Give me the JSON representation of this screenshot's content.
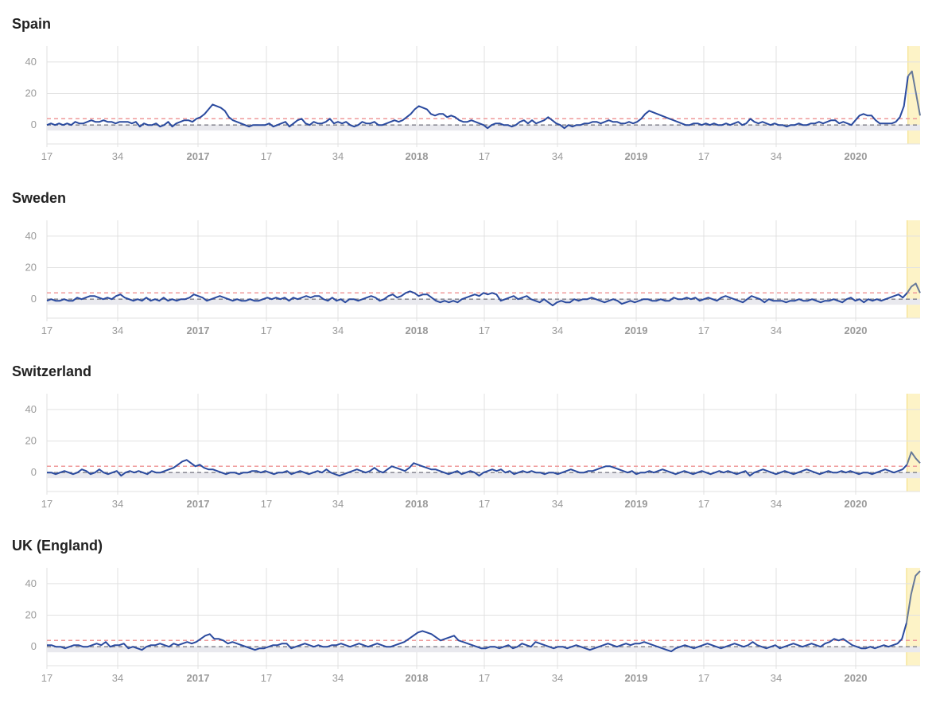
{
  "chart_data": [
    {
      "type": "line",
      "title": "Spain",
      "x_tick_labels": [
        "17",
        "34",
        "2017",
        "17",
        "34",
        "2018",
        "17",
        "34",
        "2019",
        "17",
        "34",
        "2020"
      ],
      "y_ticks": [
        0,
        20,
        40
      ],
      "ylim": [
        -12,
        50
      ],
      "threshold": 4,
      "baseline": 0,
      "highlight_last_weeks": 3,
      "x_unit": "ISO week (2016 week 17 to 2020 week 14)",
      "y": [
        0,
        1,
        0,
        1,
        0,
        1,
        0,
        2,
        1,
        1,
        2,
        3,
        2,
        2,
        3,
        2,
        2,
        1,
        2,
        2,
        2,
        1,
        2,
        -1,
        1,
        0,
        0,
        1,
        -1,
        0,
        2,
        -1,
        1,
        2,
        3,
        3,
        2,
        4,
        5,
        7,
        10,
        13,
        12,
        11,
        9,
        5,
        3,
        2,
        1,
        0,
        -1,
        0,
        0,
        0,
        0,
        1,
        -1,
        0,
        1,
        2,
        -1,
        1,
        3,
        4,
        1,
        0,
        2,
        1,
        1,
        2,
        4,
        1,
        2,
        1,
        2,
        0,
        -1,
        0,
        2,
        1,
        1,
        2,
        0,
        0,
        1,
        2,
        3,
        2,
        3,
        5,
        7,
        10,
        12,
        11,
        10,
        7,
        6,
        7,
        7,
        5,
        6,
        5,
        3,
        2,
        2,
        3,
        2,
        1,
        0,
        -2,
        0,
        1,
        1,
        0,
        0,
        -1,
        0,
        2,
        3,
        1,
        3,
        1,
        2,
        3,
        5,
        3,
        1,
        0,
        -2,
        0,
        -1,
        0,
        0,
        1,
        1,
        2,
        2,
        1,
        2,
        3,
        2,
        2,
        1,
        1,
        2,
        1,
        2,
        4,
        7,
        9,
        8,
        7,
        6,
        5,
        4,
        3,
        2,
        1,
        0,
        0,
        1,
        1,
        0,
        1,
        0,
        1,
        0,
        0,
        1,
        0,
        1,
        2,
        0,
        1,
        4,
        2,
        1,
        2,
        1,
        0,
        1,
        0,
        0,
        -1,
        0,
        0,
        1,
        0,
        0,
        1,
        1,
        2,
        1,
        2,
        3,
        3,
        1,
        2,
        1,
        0,
        3,
        6,
        7,
        6,
        6,
        3,
        1,
        1,
        1,
        1,
        2,
        5,
        12,
        31,
        34,
        20,
        6
      ]
    },
    {
      "type": "line",
      "title": "Sweden",
      "x_tick_labels": [
        "17",
        "34",
        "2017",
        "17",
        "34",
        "2018",
        "17",
        "34",
        "2019",
        "17",
        "34",
        "2020"
      ],
      "y_ticks": [
        0,
        20,
        40
      ],
      "ylim": [
        -12,
        50
      ],
      "threshold": 4,
      "baseline": 0,
      "highlight_last_weeks": 3,
      "x_unit": "ISO week (2016 week 17 to 2020 week 14)",
      "y": [
        -1,
        0,
        -1,
        -1,
        0,
        -1,
        -1,
        1,
        0,
        1,
        2,
        2,
        1,
        0,
        1,
        0,
        2,
        3,
        1,
        0,
        -1,
        0,
        -1,
        1,
        -1,
        0,
        -1,
        1,
        -1,
        0,
        -1,
        0,
        0,
        1,
        3,
        2,
        1,
        -1,
        0,
        1,
        2,
        1,
        0,
        -1,
        0,
        -1,
        -1,
        0,
        -1,
        -1,
        0,
        1,
        0,
        1,
        0,
        1,
        -1,
        1,
        0,
        1,
        2,
        1,
        2,
        2,
        0,
        -1,
        1,
        -1,
        0,
        -2,
        0,
        0,
        -1,
        0,
        1,
        2,
        1,
        -1,
        0,
        2,
        3,
        1,
        2,
        4,
        5,
        4,
        2,
        3,
        3,
        1,
        -1,
        -2,
        -1,
        -2,
        -1,
        -2,
        0,
        1,
        2,
        3,
        2,
        4,
        3,
        4,
        3,
        -1,
        0,
        1,
        2,
        0,
        1,
        2,
        0,
        -1,
        -2,
        0,
        -2,
        -4,
        -2,
        -1,
        -2,
        -2,
        0,
        -1,
        0,
        0,
        1,
        0,
        -1,
        -2,
        -1,
        0,
        -1,
        -3,
        -2,
        -1,
        -2,
        -1,
        0,
        0,
        -1,
        -1,
        0,
        -1,
        -1,
        1,
        0,
        0,
        1,
        0,
        1,
        -1,
        0,
        1,
        0,
        -1,
        1,
        2,
        1,
        0,
        -1,
        -2,
        0,
        2,
        1,
        0,
        -2,
        0,
        -1,
        -1,
        -1,
        -2,
        -1,
        -1,
        0,
        -1,
        -1,
        0,
        -1,
        -2,
        -1,
        -1,
        0,
        -1,
        -2,
        0,
        1,
        -1,
        0,
        -2,
        0,
        -1,
        0,
        -1,
        0,
        1,
        2,
        3,
        1,
        4,
        8,
        10,
        4
      ]
    },
    {
      "type": "line",
      "title": "Switzerland",
      "x_tick_labels": [
        "17",
        "34",
        "2017",
        "17",
        "34",
        "2018",
        "17",
        "34",
        "2019",
        "17",
        "34",
        "2020"
      ],
      "y_ticks": [
        0,
        20,
        40
      ],
      "ylim": [
        -12,
        50
      ],
      "threshold": 4,
      "baseline": 0,
      "highlight_last_weeks": 3,
      "x_unit": "ISO week (2016 week 17 to 2020 week 14)",
      "y": [
        0,
        0,
        -1,
        0,
        1,
        0,
        -1,
        0,
        2,
        1,
        -1,
        0,
        2,
        0,
        -1,
        0,
        1,
        -2,
        0,
        1,
        0,
        1,
        0,
        -1,
        1,
        0,
        0,
        1,
        2,
        3,
        5,
        7,
        8,
        6,
        4,
        5,
        3,
        2,
        2,
        1,
        0,
        -1,
        0,
        0,
        -1,
        0,
        0,
        1,
        1,
        0,
        1,
        0,
        -1,
        0,
        0,
        1,
        -1,
        0,
        1,
        0,
        -1,
        0,
        1,
        0,
        2,
        0,
        -1,
        -2,
        -1,
        0,
        1,
        2,
        1,
        0,
        1,
        3,
        1,
        0,
        2,
        4,
        3,
        2,
        1,
        3,
        6,
        5,
        4,
        3,
        2,
        2,
        1,
        0,
        -1,
        0,
        1,
        -1,
        0,
        1,
        0,
        -2,
        0,
        1,
        2,
        1,
        2,
        0,
        1,
        -1,
        0,
        1,
        0,
        1,
        0,
        0,
        -1,
        0,
        0,
        -1,
        0,
        1,
        2,
        1,
        0,
        0,
        1,
        1,
        2,
        3,
        4,
        4,
        3,
        2,
        1,
        0,
        1,
        -1,
        0,
        0,
        1,
        0,
        1,
        2,
        1,
        0,
        -1,
        0,
        1,
        0,
        -1,
        0,
        1,
        0,
        -1,
        0,
        1,
        0,
        1,
        0,
        -1,
        0,
        1,
        -2,
        0,
        1,
        2,
        1,
        0,
        -1,
        0,
        1,
        0,
        -1,
        0,
        1,
        2,
        1,
        0,
        -1,
        0,
        1,
        0,
        0,
        1,
        0,
        1,
        0,
        -1,
        0,
        0,
        -1,
        0,
        1,
        2,
        1,
        0,
        1,
        2,
        5,
        13,
        9,
        6
      ]
    },
    {
      "type": "line",
      "title": "UK (England)",
      "x_tick_labels": [
        "17",
        "34",
        "2017",
        "17",
        "34",
        "2018",
        "17",
        "34",
        "2019",
        "17",
        "34",
        "2020"
      ],
      "y_ticks": [
        0,
        20,
        40
      ],
      "ylim": [
        -12,
        50
      ],
      "threshold": 4,
      "baseline": 0,
      "highlight_last_weeks": 3,
      "x_unit": "ISO week (2016 week 17 to 2020 week 14)",
      "y": [
        1,
        1,
        0,
        0,
        -1,
        0,
        1,
        1,
        0,
        0,
        1,
        2,
        1,
        3,
        0,
        1,
        1,
        2,
        -1,
        0,
        -1,
        -2,
        0,
        1,
        1,
        2,
        1,
        0,
        2,
        1,
        2,
        3,
        2,
        3,
        5,
        7,
        8,
        5,
        5,
        4,
        2,
        3,
        2,
        1,
        0,
        -1,
        -2,
        -1,
        -1,
        0,
        1,
        1,
        2,
        2,
        -1,
        0,
        1,
        2,
        1,
        0,
        1,
        0,
        0,
        1,
        1,
        2,
        1,
        0,
        1,
        2,
        1,
        0,
        1,
        2,
        1,
        0,
        0,
        1,
        2,
        3,
        5,
        7,
        9,
        10,
        9,
        8,
        6,
        4,
        5,
        6,
        7,
        4,
        3,
        2,
        1,
        0,
        -1,
        -1,
        0,
        0,
        -1,
        0,
        1,
        -1,
        0,
        2,
        1,
        0,
        3,
        2,
        1,
        0,
        -1,
        0,
        0,
        -1,
        0,
        1,
        0,
        -1,
        -2,
        -1,
        0,
        1,
        2,
        1,
        0,
        1,
        2,
        1,
        2,
        2,
        3,
        2,
        1,
        0,
        -1,
        -2,
        -3,
        -1,
        0,
        1,
        0,
        -1,
        0,
        1,
        2,
        1,
        0,
        -1,
        0,
        1,
        2,
        1,
        0,
        1,
        3,
        1,
        0,
        -1,
        0,
        1,
        -1,
        0,
        1,
        2,
        1,
        0,
        1,
        2,
        1,
        0,
        2,
        3,
        5,
        4,
        5,
        3,
        1,
        0,
        -1,
        -1,
        0,
        -1,
        0,
        1,
        0,
        1,
        2,
        5,
        15,
        33,
        45,
        48
      ]
    }
  ]
}
